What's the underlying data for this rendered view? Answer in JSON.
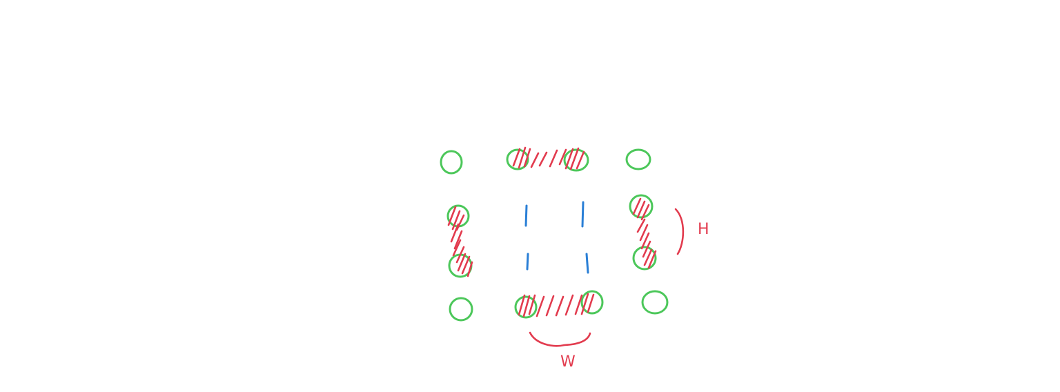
{
  "diagram": {
    "colors": {
      "circle": "#4cc75a",
      "hatch": "#e23b4e",
      "dash": "#2a7fd6",
      "label": "#e23b4e"
    },
    "grid": {
      "rows": 4,
      "columns": 4,
      "hatched_edges": [
        "top",
        "left",
        "right",
        "bottom"
      ],
      "inner_marks": 4
    },
    "labels": {
      "height": "H",
      "width": "W"
    }
  }
}
